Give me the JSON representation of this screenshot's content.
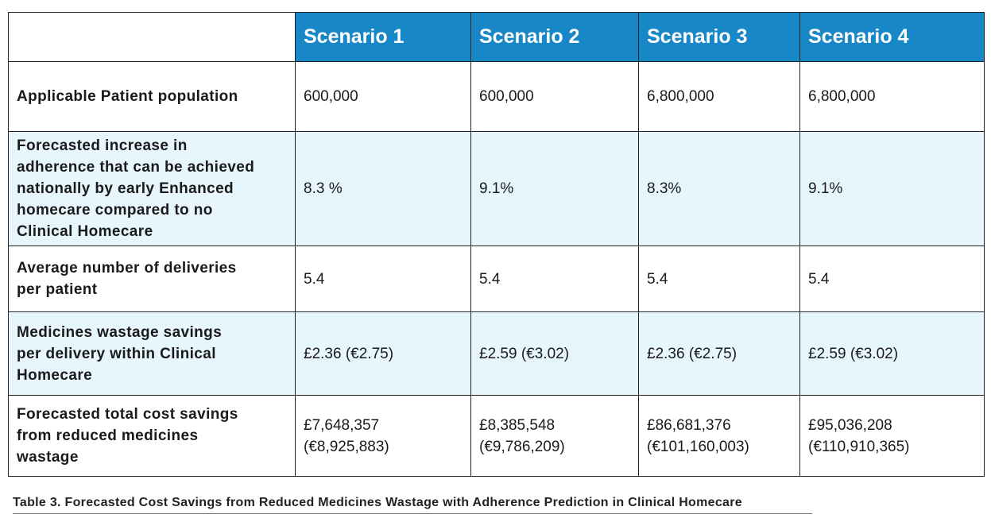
{
  "table": {
    "headers": [
      "",
      "Scenario 1",
      "Scenario 2",
      "Scenario 3",
      "Scenario 4"
    ],
    "rows": [
      {
        "label": "Applicable Patient population",
        "values": [
          "600,000",
          "600,000",
          "6,800,000",
          "6,800,000"
        ]
      },
      {
        "label": "Forecasted increase in\nadherence that can be achieved\nnationally by early Enhanced\nhomecare compared to no\nClinical Homecare",
        "values": [
          "8.3 %",
          "9.1%",
          "8.3%",
          "9.1%"
        ]
      },
      {
        "label": "Average number of deliveries\nper patient",
        "values": [
          "5.4",
          "5.4",
          "5.4",
          "5.4"
        ]
      },
      {
        "label": "Medicines wastage savings\nper delivery within Clinical\nHomecare",
        "values": [
          "£2.36 (€2.75)",
          "£2.59 (€3.02)",
          "£2.36 (€2.75)",
          "£2.59 (€3.02)"
        ]
      },
      {
        "label": "Forecasted total cost savings\nfrom reduced medicines\nwastage",
        "values": [
          "£7,648,357\n(€8,925,883)",
          "£8,385,548\n(€9,786,209)",
          "£86,681,376\n(€101,160,003)",
          "£95,036,208\n(€110,910,365)"
        ]
      }
    ]
  },
  "caption": "Table 3. Forecasted Cost Savings from Reduced Medicines Wastage with Adherence Prediction in Clinical Homecare",
  "colors": {
    "header": "#1787c8",
    "alt_row": "#e7f6fd"
  }
}
